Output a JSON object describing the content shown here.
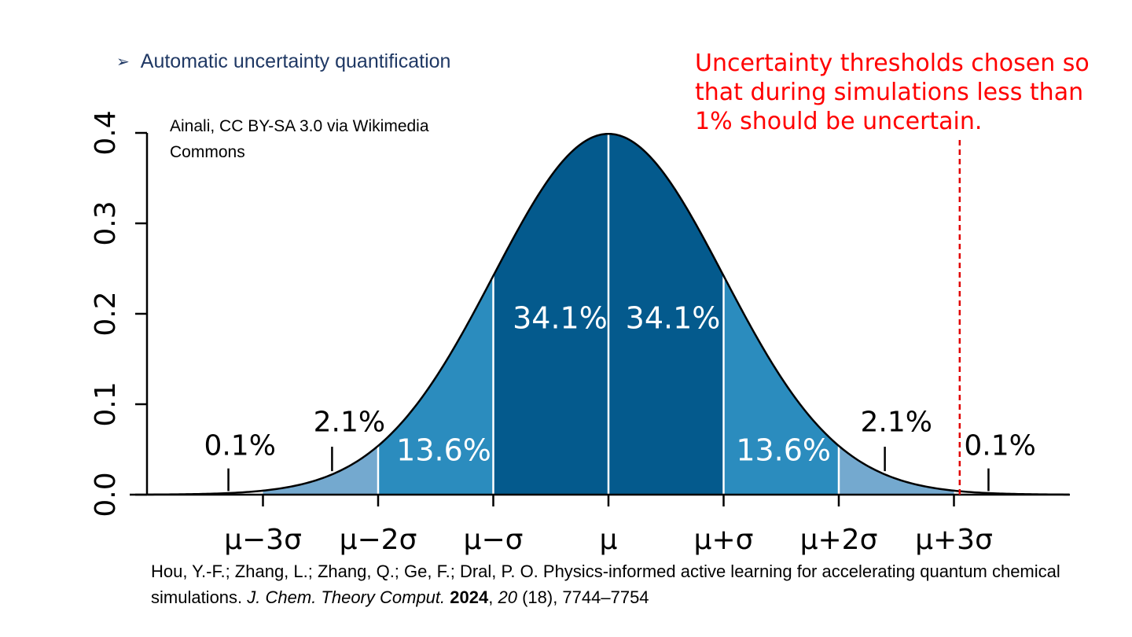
{
  "bullet": {
    "icon": "arrow-bullet-icon",
    "text": "Automatic uncertainty quantification"
  },
  "annotation": {
    "text": "Uncertainty thresholds chosen so that during simulations less than 1% should be uncertain.",
    "color": "#ff0000"
  },
  "image_credit": "Ainali, CC BY-SA 3.0 via Wikimedia Commons",
  "citation": {
    "authors": "Hou, Y.-F.; Zhang, L.; Zhang, Q.; Ge, F.; Dral, P. O. Physics-informed active learning for accelerating quantum chemical simulations.",
    "journal": "J. Chem. Theory Comput.",
    "year": "2024",
    "volume": "20",
    "issue": "(18), 7744–7754"
  },
  "chart_data": {
    "type": "area",
    "title": "",
    "xlabel": "",
    "ylabel": "",
    "xlim": [
      -4,
      4
    ],
    "ylim": [
      0,
      0.4
    ],
    "yticks": [
      "0.0",
      "0.1",
      "0.2",
      "0.3",
      "0.4"
    ],
    "ytick_values": [
      0,
      0.1,
      0.2,
      0.3,
      0.4
    ],
    "xticks": [
      "μ−3σ",
      "μ−2σ",
      "μ−σ",
      "μ",
      "μ+σ",
      "μ+2σ",
      "μ+3σ"
    ],
    "xtick_values": [
      -3,
      -2,
      -1,
      0,
      1,
      2,
      3
    ],
    "curve": "standard normal density",
    "bands": [
      {
        "from": -3,
        "to": -2,
        "percent": "2.1%",
        "color": "#74a9cf"
      },
      {
        "from": -2,
        "to": -1,
        "percent": "13.6%",
        "color": "#2b8cbe"
      },
      {
        "from": -1,
        "to": 0,
        "percent": "34.1%",
        "color": "#045a8d"
      },
      {
        "from": 0,
        "to": 1,
        "percent": "34.1%",
        "color": "#045a8d"
      },
      {
        "from": 1,
        "to": 2,
        "percent": "13.6%",
        "color": "#2b8cbe"
      },
      {
        "from": 2,
        "to": 3,
        "percent": "2.1%",
        "color": "#74a9cf"
      }
    ],
    "tail_labels": [
      {
        "x": -3.3,
        "text": "0.1%"
      },
      {
        "x": -2.4,
        "text": "2.1%"
      },
      {
        "x": 2.4,
        "text": "2.1%"
      },
      {
        "x": 3.3,
        "text": "0.1%"
      }
    ],
    "threshold": {
      "x": 3.05,
      "color": "#e00000",
      "style": "dashed"
    }
  }
}
